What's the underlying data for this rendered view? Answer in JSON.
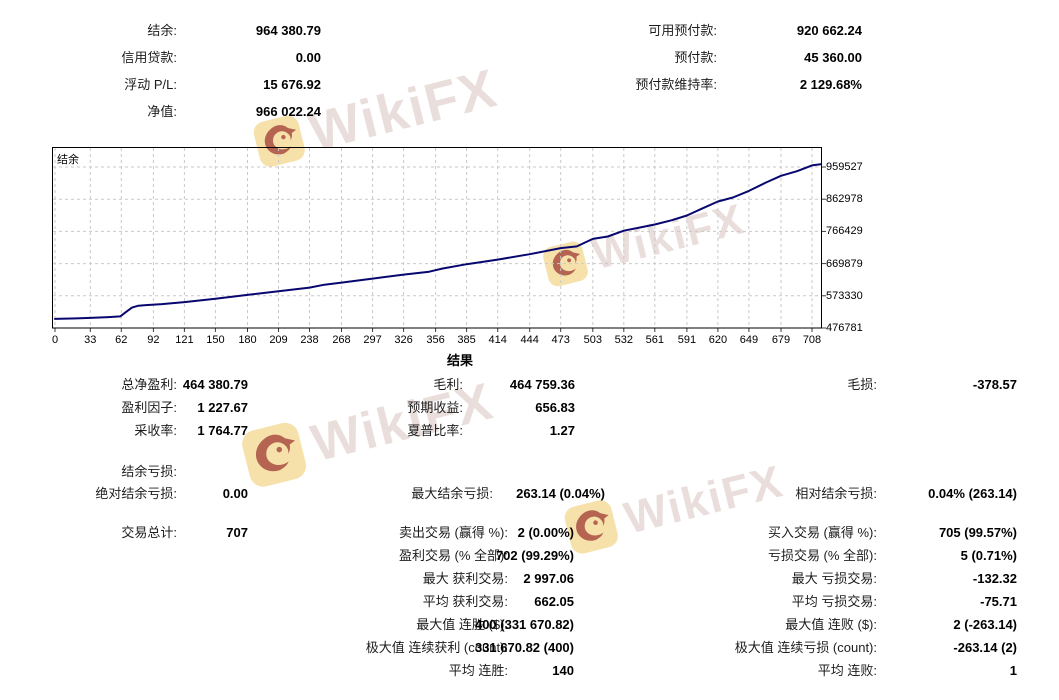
{
  "watermark": {
    "text": "WikiFX",
    "box_color": "#f6dc9c",
    "eagle_color": "#a3453a",
    "text_color": "#e9dedb"
  },
  "summary_left": [
    {
      "label": "结余:",
      "value": "964 380.79"
    },
    {
      "label": "信用贷款:",
      "value": "0.00"
    },
    {
      "label": "浮动 P/L:",
      "value": "15 676.92"
    },
    {
      "label": "净值:",
      "value": "966 022.24"
    }
  ],
  "summary_right": [
    {
      "label": "可用预付款:",
      "value": "920 662.24"
    },
    {
      "label": "预付款:",
      "value": "45 360.00"
    },
    {
      "label": "预付款维持率:",
      "value": "2 129.68%"
    }
  ],
  "results_title": "结果",
  "stats": {
    "net_profit": {
      "label": "总净盈利:",
      "value": "464 380.79"
    },
    "gross_profit": {
      "label": "毛利:",
      "value": "464 759.36"
    },
    "gross_loss": {
      "label": "毛损:",
      "value": "-378.57"
    },
    "profit_factor": {
      "label": "盈利因子:",
      "value": "1 227.67"
    },
    "expected_payoff": {
      "label": "预期收益:",
      "value": "656.83"
    },
    "recovery_factor": {
      "label": "采收率:",
      "value": "1 764.77"
    },
    "sharpe_ratio": {
      "label": "夏普比率:",
      "value": "1.27"
    },
    "drawdown_header": "结余亏损:",
    "abs_drawdown": {
      "label": "绝对结余亏损:",
      "value": "0.00"
    },
    "max_drawdown": {
      "label": "最大结余亏损:",
      "value": "263.14 (0.04%)"
    },
    "rel_drawdown": {
      "label": "相对结余亏损:",
      "value": "0.04% (263.14)"
    },
    "total_trades": {
      "label": "交易总计:",
      "value": "707"
    },
    "short_trades": {
      "label": "卖出交易 (赢得 %):",
      "value": "2 (0.00%)"
    },
    "long_trades": {
      "label": "买入交易 (赢得 %):",
      "value": "705 (99.57%)"
    },
    "profit_trades": {
      "label": "盈利交易 (% 全部):",
      "value": "702 (99.29%)"
    },
    "loss_trades": {
      "label": "亏损交易 (% 全部):",
      "value": "5 (0.71%)"
    },
    "largest_profit_trade": {
      "label": "最大 获利交易:",
      "value": "2 997.06"
    },
    "largest_loss_trade": {
      "label": "最大 亏损交易:",
      "value": "-132.32"
    },
    "average_profit_trade": {
      "label": "平均 获利交易:",
      "value": "662.05"
    },
    "average_loss_trade": {
      "label": "平均 亏损交易:",
      "value": "-75.71"
    },
    "max_consecutive_wins": {
      "label": "最大值 连胜 ($):",
      "value": "400 (331 670.82)"
    },
    "max_consecutive_losses": {
      "label": "最大值 连败 ($):",
      "value": "2 (-263.14)"
    },
    "max_consecutive_profit": {
      "label": "极大值 连续获利 (count):",
      "value": "331 670.82 (400)"
    },
    "max_consecutive_loss": {
      "label": "极大值 连续亏损 (count):",
      "value": "-263.14 (2)"
    },
    "avg_consecutive_wins": {
      "label": "平均 连胜:",
      "value": "140"
    },
    "avg_consecutive_losses": {
      "label": "平均 连败:",
      "value": "1"
    }
  },
  "chart_data": {
    "type": "line",
    "legend": "结余",
    "line_color": "#07076f",
    "grid": true,
    "x_ticks": [
      0,
      33,
      62,
      92,
      121,
      150,
      180,
      209,
      238,
      268,
      297,
      326,
      356,
      385,
      414,
      444,
      473,
      503,
      532,
      561,
      591,
      620,
      649,
      679,
      708
    ],
    "y_ticks": [
      476781,
      573330,
      669879,
      766429,
      862978,
      959527
    ],
    "xlim": [
      0,
      717
    ],
    "ylim": [
      476781,
      1019900
    ],
    "series": [
      {
        "name": "结余",
        "points": [
          [
            0,
            504000
          ],
          [
            20,
            505500
          ],
          [
            33,
            507000
          ],
          [
            50,
            509500
          ],
          [
            61,
            511500
          ],
          [
            66,
            524000
          ],
          [
            72,
            538000
          ],
          [
            78,
            543500
          ],
          [
            85,
            545500
          ],
          [
            100,
            548500
          ],
          [
            121,
            554500
          ],
          [
            150,
            564500
          ],
          [
            180,
            576000
          ],
          [
            209,
            587000
          ],
          [
            238,
            598000
          ],
          [
            252,
            606500
          ],
          [
            268,
            613000
          ],
          [
            297,
            625000
          ],
          [
            326,
            637000
          ],
          [
            350,
            645500
          ],
          [
            362,
            655000
          ],
          [
            385,
            668000
          ],
          [
            414,
            682000
          ],
          [
            444,
            698000
          ],
          [
            473,
            716500
          ],
          [
            488,
            721500
          ],
          [
            503,
            744000
          ],
          [
            517,
            751000
          ],
          [
            532,
            768500
          ],
          [
            547,
            778000
          ],
          [
            561,
            787000
          ],
          [
            577,
            800000
          ],
          [
            591,
            814000
          ],
          [
            606,
            836000
          ],
          [
            620,
            856000
          ],
          [
            634,
            868000
          ],
          [
            649,
            888000
          ],
          [
            665,
            913000
          ],
          [
            679,
            933000
          ],
          [
            694,
            947000
          ],
          [
            708,
            964381
          ],
          [
            716,
            967500
          ]
        ]
      }
    ]
  }
}
